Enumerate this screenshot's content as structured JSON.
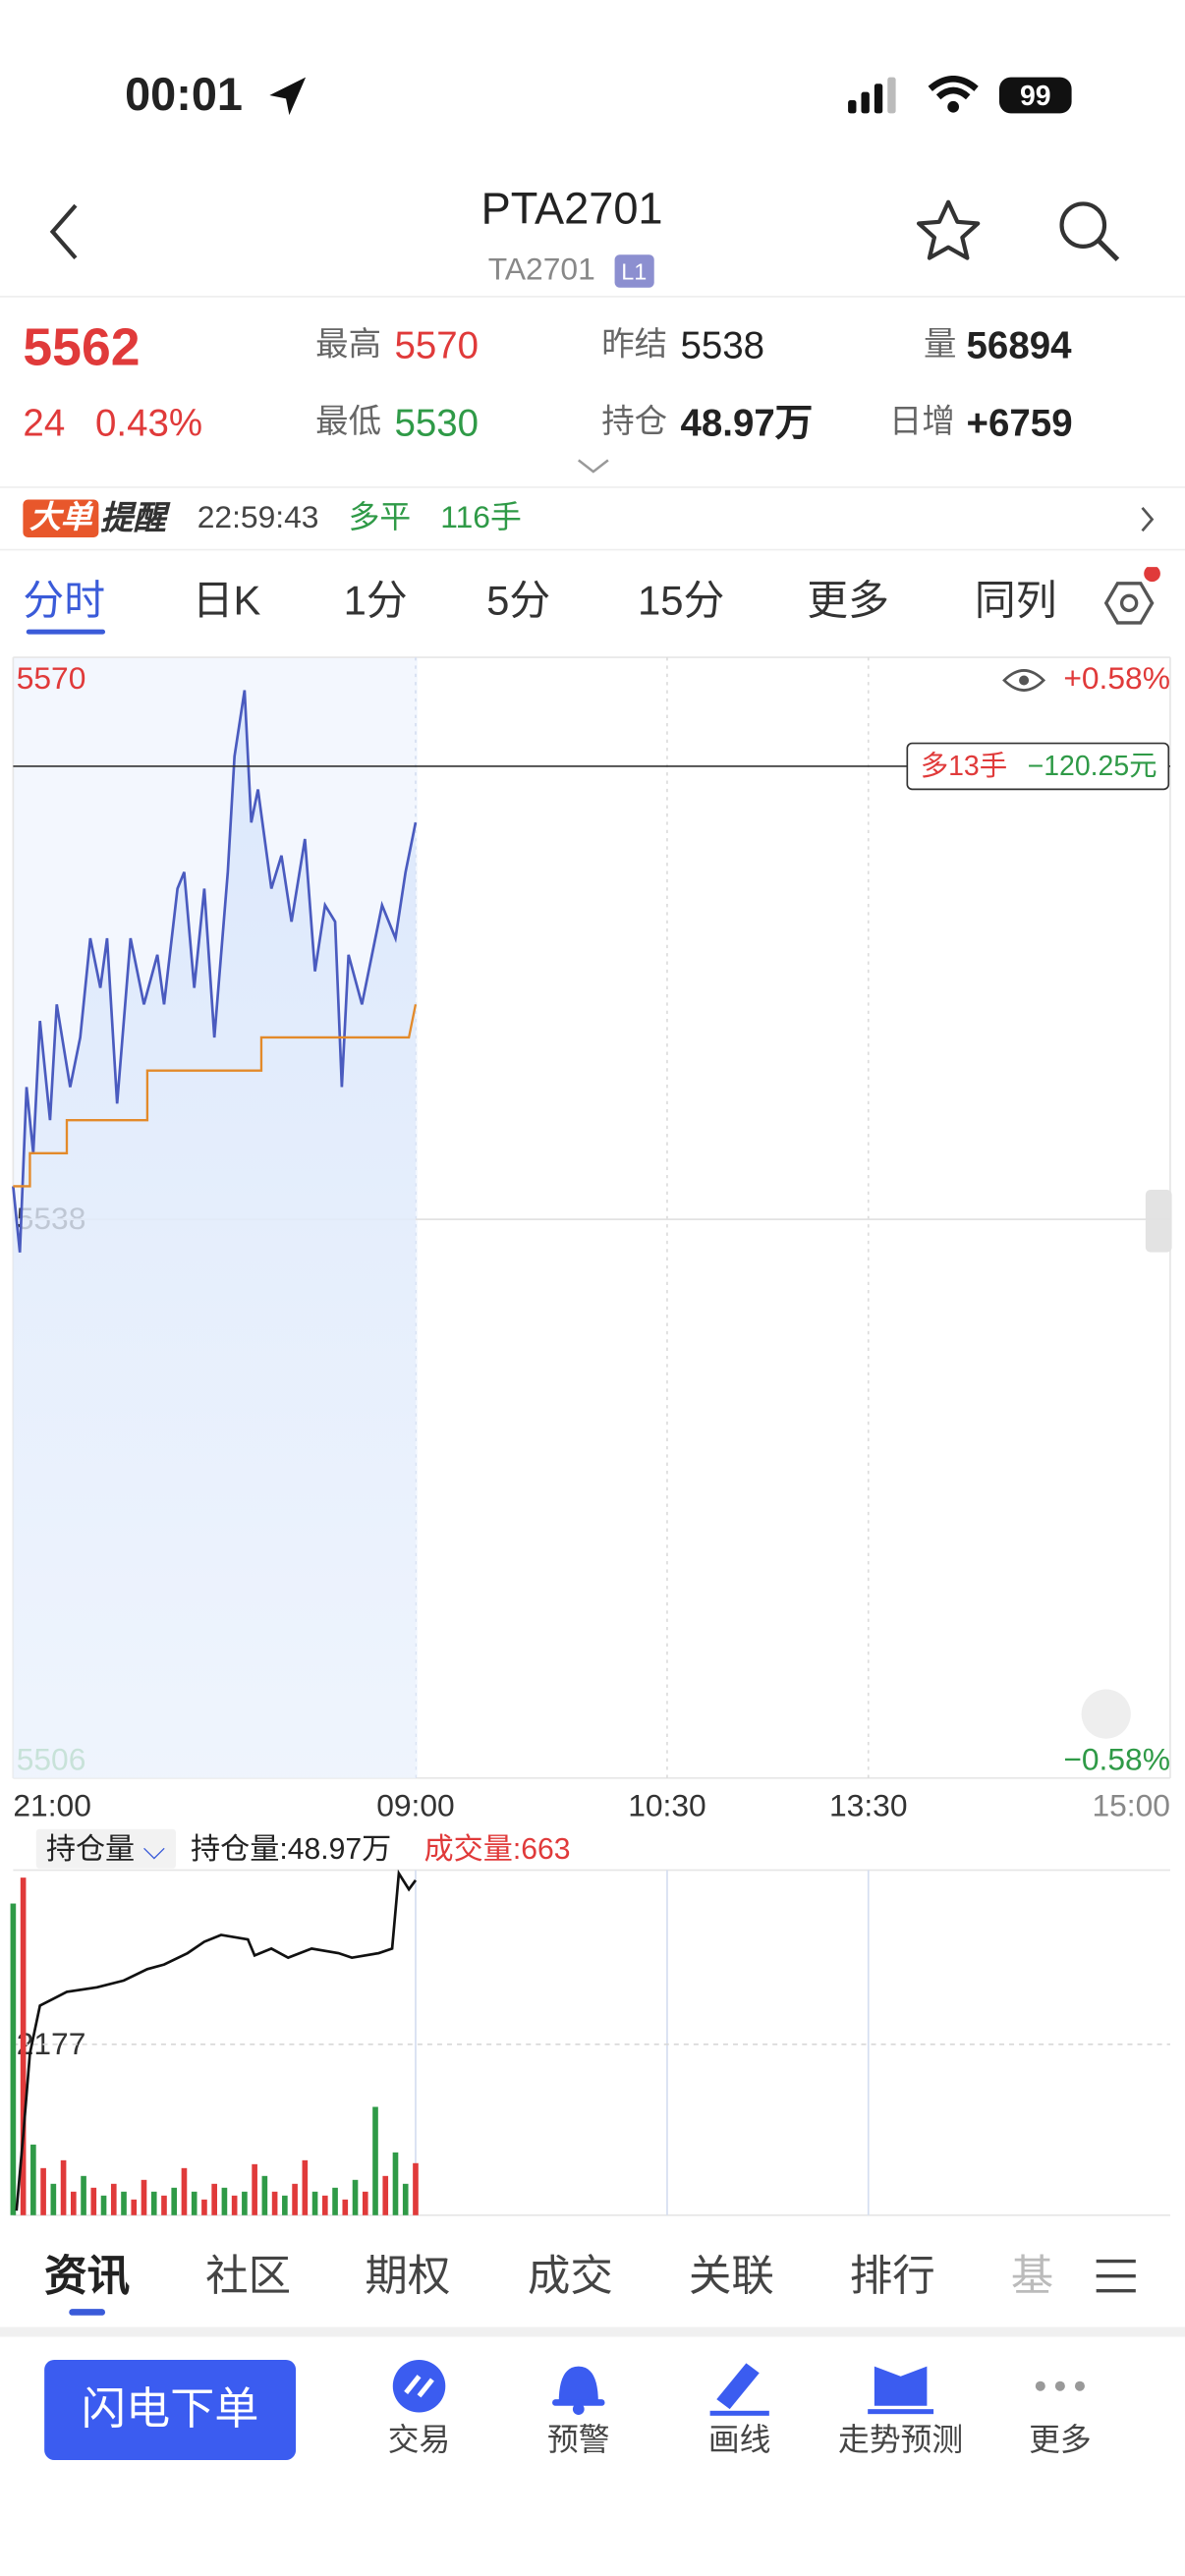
{
  "status_bar": {
    "time": "00:01",
    "battery": "99"
  },
  "header": {
    "title": "PTA2701",
    "subtitle": "TA2701",
    "badge": "L1"
  },
  "quote": {
    "price": "5562",
    "change": "24",
    "change_pct": "0.43%",
    "high_label": "最高",
    "high": "5570",
    "low_label": "最低",
    "low": "5530",
    "prev_settle_label": "昨结",
    "prev_settle": "5538",
    "open_interest_label": "持仓",
    "open_interest": "48.97万",
    "volume_label": "量",
    "volume": "56894",
    "daily_increase_label": "日增",
    "daily_increase": "+6759"
  },
  "alert": {
    "tag": "大单",
    "tag2": "提醒",
    "time": "22:59:43",
    "side": "多平",
    "qty": "116手"
  },
  "tabs": [
    "分时",
    "日K",
    "1分",
    "5分",
    "15分",
    "更多",
    "同列"
  ],
  "active_tab": 0,
  "chart_data": [
    {
      "type": "line",
      "xlim": [
        0,
        345
      ],
      "xticks": [
        {
          "value": 0,
          "label": "21:00"
        },
        {
          "value": 120,
          "label": "09:00"
        },
        {
          "value": 195,
          "label": "10:30"
        },
        {
          "value": 255,
          "label": "13:30"
        },
        {
          "value": 345,
          "label": "15:00"
        }
      ],
      "ylim": [
        5506,
        5570
      ],
      "yticks": [
        5570,
        5538,
        5506
      ],
      "y2lim": [
        -0.58,
        0.58
      ],
      "y2ticks": [
        {
          "value": 0.58,
          "label": "+0.58%"
        },
        {
          "value": -0.58,
          "label": "−0.58%"
        }
      ],
      "grid": true,
      "series": [
        {
          "color": "#4a5bbf",
          "x": [
            0,
            2,
            4,
            6,
            8,
            11,
            13,
            17,
            20,
            23,
            26,
            28,
            31,
            35,
            39,
            43,
            45,
            49,
            51,
            54,
            57,
            60,
            64,
            66,
            69,
            71,
            73,
            77,
            80,
            83,
            87,
            90,
            93,
            96,
            98,
            100,
            104,
            107,
            110,
            114,
            117,
            120
          ],
          "values": [
            5540,
            5536,
            5546,
            5542,
            5550,
            5544,
            5551,
            5546,
            5549,
            5555,
            5552,
            5555,
            5545,
            5555,
            5551,
            5554,
            5551,
            5558,
            5559,
            5552,
            5558,
            5549,
            5559,
            5566,
            5570,
            5562,
            5564,
            5558,
            5560,
            5556,
            5561,
            5553,
            5557,
            5556,
            5546,
            5554,
            5551,
            5554,
            5557,
            5555,
            5559,
            5562
          ]
        },
        {
          "color": "#e38a2a",
          "x": [
            0,
            5,
            5,
            16,
            16,
            40,
            40,
            74,
            74,
            118,
            120
          ],
          "values": [
            5540,
            5540,
            5542,
            5542,
            5544,
            5544,
            5547,
            5547,
            5549,
            5549,
            5551
          ]
        }
      ],
      "annotation": {
        "value": 5565.4,
        "side": "多13手",
        "pnl": "−120.25元"
      }
    },
    {
      "type": "bar",
      "xlim": [
        0,
        345
      ],
      "ylim": [
        0,
        4354
      ],
      "yticks": [
        2177
      ],
      "y2lim": [
        47.5,
        49.0
      ],
      "grid": true,
      "series": [
        {
          "x": [
            0,
            3,
            6,
            9,
            12,
            15,
            18,
            21,
            24,
            27,
            30,
            33,
            36,
            39,
            42,
            45,
            48,
            51,
            54,
            57,
            60,
            63,
            66,
            69,
            72,
            75,
            78,
            81,
            84,
            87,
            90,
            93,
            96,
            99,
            102,
            105,
            108,
            111,
            114,
            117,
            120
          ],
          "values": [
            3970,
            4300,
            900,
            600,
            400,
            700,
            300,
            500,
            350,
            250,
            400,
            300,
            200,
            450,
            300,
            250,
            350,
            600,
            300,
            200,
            400,
            350,
            250,
            300,
            650,
            500,
            300,
            250,
            400,
            700,
            300,
            250,
            350,
            200,
            450,
            300,
            1380,
            500,
            800,
            400,
            663
          ],
          "colors": [
            "#2f9a47",
            "#e03a3a",
            "#2f9a47",
            "#e03a3a",
            "#2f9a47",
            "#e03a3a",
            "#e03a3a",
            "#2f9a47",
            "#e03a3a",
            "#2f9a47",
            "#e03a3a",
            "#2f9a47",
            "#e03a3a",
            "#e03a3a",
            "#2f9a47",
            "#e03a3a",
            "#2f9a47",
            "#e03a3a",
            "#2f9a47",
            "#e03a3a",
            "#e03a3a",
            "#2f9a47",
            "#e03a3a",
            "#2f9a47",
            "#e03a3a",
            "#2f9a47",
            "#e03a3a",
            "#2f9a47",
            "#e03a3a",
            "#e03a3a",
            "#2f9a47",
            "#e03a3a",
            "#2f9a47",
            "#e03a3a",
            "#2f9a47",
            "#e03a3a",
            "#2f9a47",
            "#e03a3a",
            "#2f9a47",
            "#2f9a47",
            "#e03a3a"
          ]
        },
        {
          "type": "line",
          "axis": "y2",
          "color": "#111111",
          "x": [
            1,
            3,
            5,
            8,
            16,
            25,
            33,
            40,
            45,
            52,
            57,
            62,
            70,
            72,
            77,
            82,
            89,
            97,
            101,
            109,
            113,
            115,
            118,
            120
          ],
          "values": [
            47.52,
            47.85,
            48.21,
            48.42,
            48.48,
            48.5,
            48.53,
            48.58,
            48.6,
            48.65,
            48.7,
            48.73,
            48.71,
            48.64,
            48.67,
            48.63,
            48.67,
            48.65,
            48.63,
            48.65,
            48.67,
            49.0,
            48.93,
            48.97
          ]
        }
      ]
    }
  ],
  "sub_header": {
    "selector": "持仓量",
    "open_interest": "持仓量:48.97万",
    "volume": "成交量:663"
  },
  "bottom_tabs": [
    "资讯",
    "社区",
    "期权",
    "成交",
    "关联",
    "排行",
    "基"
  ],
  "toolbar": {
    "primary": "闪电下单",
    "items": [
      "交易",
      "预警",
      "画线",
      "走势预测",
      "更多"
    ]
  }
}
